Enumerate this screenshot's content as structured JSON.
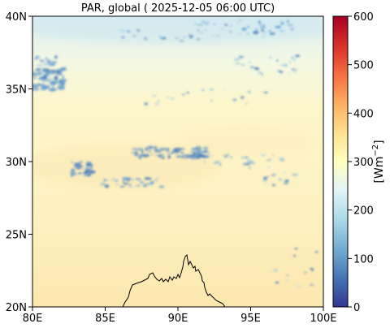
{
  "title": "PAR, global ( 2025-12-05 06:00 UTC)",
  "colorbar": {
    "label_base": "[Wm",
    "label_exp": "−2",
    "label_end": "]",
    "min": 0,
    "max": 600,
    "ticks": [
      "0",
      "100",
      "200",
      "300",
      "400",
      "500",
      "600"
    ],
    "colormap": "RdYlBu_r",
    "colors": [
      "#313695",
      "#4575b4",
      "#74add1",
      "#abd9e9",
      "#e0f3f8",
      "#ffffbf",
      "#fee090",
      "#fdae61",
      "#f46d43",
      "#d73027",
      "#a50026"
    ]
  },
  "map": {
    "lon_range": [
      80,
      100
    ],
    "lat_range": [
      20,
      40
    ],
    "x_ticks": [
      "80E",
      "85E",
      "90E",
      "95E",
      "100E"
    ],
    "y_ticks": [
      "20N",
      "25N",
      "30N",
      "35N",
      "40N"
    ],
    "background_colors": {
      "north": "#dceef3",
      "middle": "#fdf6cc",
      "south": "#fde7ae"
    },
    "coastline_color": "#000000"
  }
}
